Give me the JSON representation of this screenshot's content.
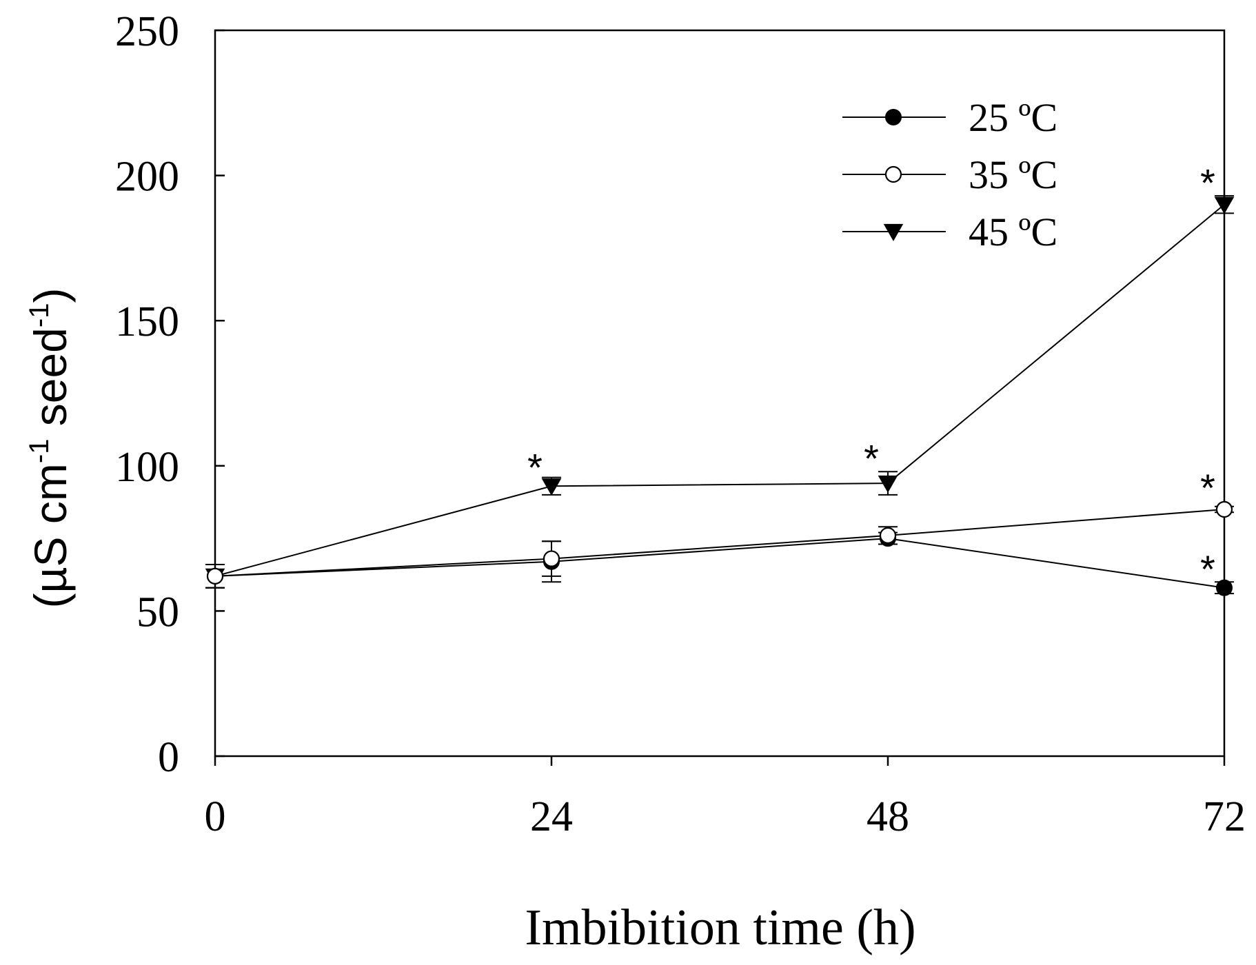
{
  "chart_data": {
    "type": "line",
    "title": "",
    "xlabel": "Imbibition time (h)",
    "ylabel": "(µS cm-1 seed-1)",
    "ylabel_parts": {
      "open": "(µS cm",
      "sup1": "-1",
      "mid": " seed",
      "sup2": "-1",
      "close": ")"
    },
    "x": [
      0,
      24,
      48,
      72
    ],
    "x_tick_labels": [
      "0",
      "24",
      "48",
      "72"
    ],
    "xlim": [
      0,
      72
    ],
    "ylim": [
      0,
      250
    ],
    "y_ticks": [
      0,
      50,
      100,
      150,
      200,
      250
    ],
    "y_tick_labels": [
      "0",
      "50",
      "100",
      "150",
      "200",
      "250"
    ],
    "grid": false,
    "legend_position": "top-right",
    "series": [
      {
        "name": "25 ºC",
        "marker": "filled-circle",
        "values": [
          62,
          67,
          75,
          58
        ],
        "errors": [
          4,
          7,
          2,
          2
        ]
      },
      {
        "name": "35 ºC",
        "marker": "open-circle",
        "values": [
          62,
          68,
          76,
          85
        ],
        "errors": [
          4,
          6,
          3,
          1
        ]
      },
      {
        "name": "45 ºC",
        "marker": "filled-triangle-down",
        "values": [
          62,
          93,
          94,
          190
        ],
        "errors": [
          4,
          3,
          4,
          3
        ]
      }
    ],
    "annotations": [
      {
        "text": "*",
        "x": 24,
        "y": 102
      },
      {
        "text": "*",
        "x": 48,
        "y": 105
      },
      {
        "text": "*",
        "x": 72,
        "y": 200
      },
      {
        "text": "*",
        "x": 72,
        "y": 95
      },
      {
        "text": "*",
        "x": 72,
        "y": 67
      }
    ]
  }
}
